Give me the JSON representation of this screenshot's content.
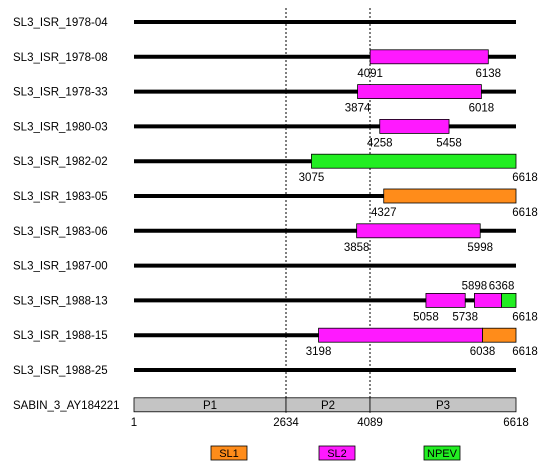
{
  "chart_data": {
    "type": "genome_map",
    "genome_length": 6618,
    "tracks": [
      {
        "name": "SL3_ISR_1978-04",
        "segments": []
      },
      {
        "name": "SL3_ISR_1978-08",
        "segments": [
          {
            "start": 4091,
            "end": 6138,
            "type": "SL2",
            "start_label": "4091",
            "end_label": "6138"
          }
        ]
      },
      {
        "name": "SL3_ISR_1978-33",
        "segments": [
          {
            "start": 3874,
            "end": 6018,
            "type": "SL2",
            "start_label": "3874",
            "end_label": "6018"
          }
        ]
      },
      {
        "name": "SL3_ISR_1980-03",
        "segments": [
          {
            "start": 4258,
            "end": 5458,
            "type": "SL2",
            "start_label": "4258",
            "end_label": "5458"
          }
        ]
      },
      {
        "name": "SL3_ISR_1982-02",
        "segments": [
          {
            "start": 3075,
            "end": 6618,
            "type": "NPEV",
            "start_label": "3075",
            "end_label": "6618"
          }
        ]
      },
      {
        "name": "SL3_ISR_1983-05",
        "segments": [
          {
            "start": 4327,
            "end": 6618,
            "type": "SL1",
            "start_label": "4327",
            "end_label": "6618"
          }
        ]
      },
      {
        "name": "SL3_ISR_1983-06",
        "segments": [
          {
            "start": 3858,
            "end": 5998,
            "type": "SL2",
            "start_label": "3858",
            "end_label": "5998"
          }
        ]
      },
      {
        "name": "SL3_ISR_1987-00",
        "segments": []
      },
      {
        "name": "SL3_ISR_1988-13",
        "segments": [
          {
            "start": 5058,
            "end": 5738,
            "type": "SL2",
            "start_label": "5058",
            "end_label": "5738"
          },
          {
            "start": 5898,
            "end": 6368,
            "type": "SL2",
            "start_label": "5898",
            "end_label": ""
          },
          {
            "start": 6368,
            "end": 6618,
            "type": "NPEV",
            "start_label": "6368",
            "end_label": "6618"
          }
        ]
      },
      {
        "name": "SL3_ISR_1988-15",
        "segments": [
          {
            "start": 3198,
            "end": 6038,
            "type": "SL2",
            "start_label": "3198",
            "end_label": ""
          },
          {
            "start": 6038,
            "end": 6618,
            "type": "SL1",
            "start_label": "6038",
            "end_label": "6618"
          }
        ]
      },
      {
        "name": "SL3_ISR_1988-25",
        "segments": []
      }
    ],
    "reference": {
      "name": "SABIN_3_AY184221",
      "regions": [
        {
          "label": "P1",
          "start": 1,
          "end": 2634
        },
        {
          "label": "P2",
          "start": 2634,
          "end": 4089
        },
        {
          "label": "P3",
          "start": 4089,
          "end": 6618
        }
      ],
      "tick_labels": [
        {
          "value": 1,
          "label": "1"
        },
        {
          "value": 2634,
          "label": "2634"
        },
        {
          "value": 4089,
          "label": "4089"
        },
        {
          "value": 6618,
          "label": "6618"
        }
      ],
      "boundaries": [
        2634,
        4089
      ]
    },
    "legend": [
      {
        "key": "SL1",
        "label": "SL1",
        "color": "#ff8c1a"
      },
      {
        "key": "SL2",
        "label": "SL2",
        "color": "#ff19ff"
      },
      {
        "key": "NPEV",
        "label": "NPEV",
        "color": "#22ee22"
      }
    ],
    "colors": {
      "line": "#000000",
      "reference_fill": "#c4c4c4"
    }
  }
}
